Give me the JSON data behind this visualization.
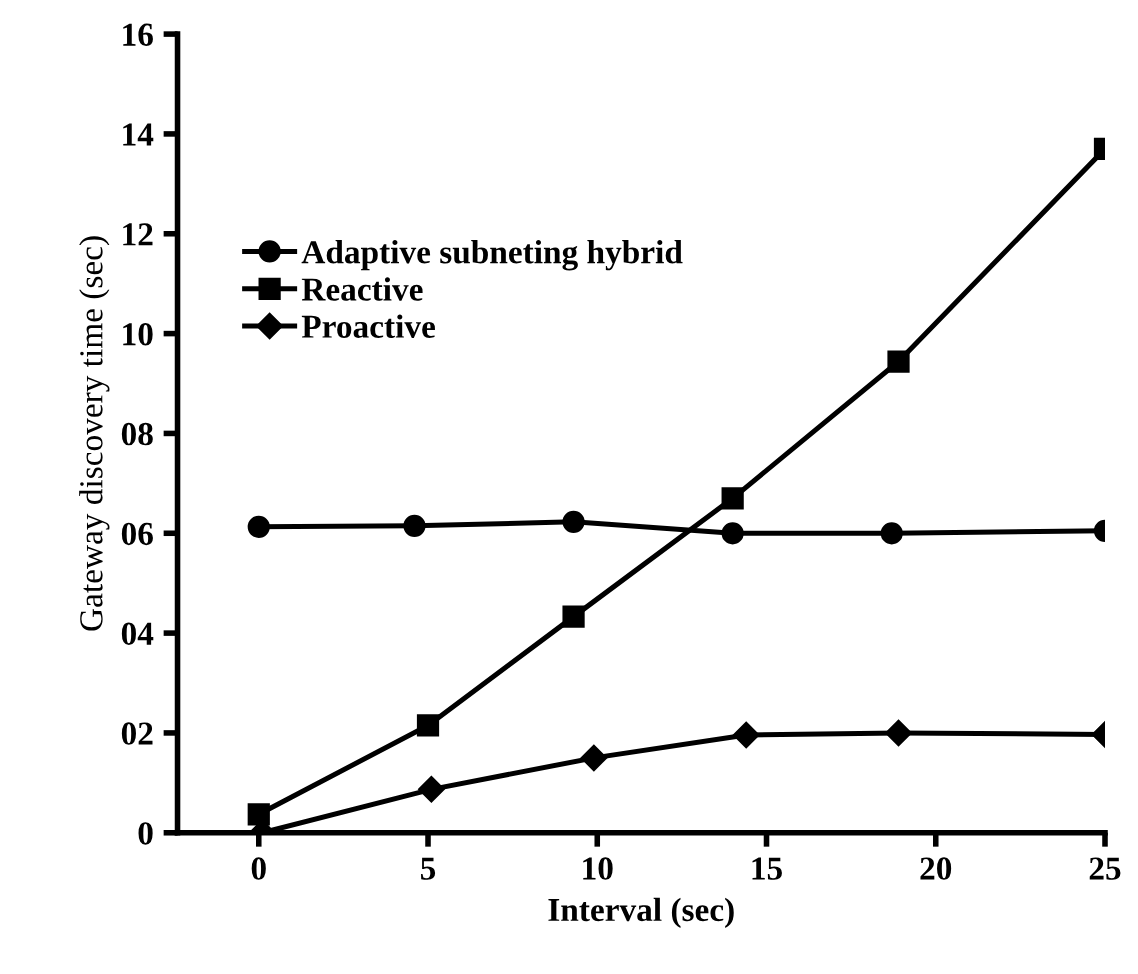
{
  "chart_data": {
    "type": "line",
    "xlabel": "Interval (sec)",
    "ylabel": "Gateway discovery time (sec)",
    "xlim": [
      -2.4,
      25
    ],
    "xticks": [
      0,
      5,
      10,
      15,
      20,
      25
    ],
    "ylim": [
      0,
      16
    ],
    "yticks": [
      0,
      {
        "value": 2,
        "label": "02"
      },
      {
        "value": 4,
        "label": "04"
      },
      {
        "value": 6,
        "label": "06"
      },
      {
        "value": 8,
        "label": "08"
      },
      10,
      12,
      14,
      16
    ],
    "legend": "top left",
    "grid": false,
    "line_style": "solid",
    "series": [
      {
        "name": "Adaptive subneting hybrid",
        "color": "#000000",
        "marker": "circle",
        "x": [
          0,
          4.6,
          9.3,
          14.0,
          18.7,
          25
        ],
        "values": [
          6.13,
          6.15,
          6.23,
          6.0,
          6.0,
          6.05
        ]
      },
      {
        "name": "Reactive",
        "color": "#000000",
        "marker": "square",
        "x": [
          0,
          5,
          9.3,
          14.0,
          18.9,
          25
        ],
        "values": [
          0.37,
          2.15,
          4.33,
          6.7,
          9.44,
          13.7
        ]
      },
      {
        "name": "Proactive",
        "color": "#000000",
        "marker": "diamond",
        "x": [
          0.1,
          5.1,
          9.9,
          14.4,
          18.9,
          25
        ],
        "values": [
          0,
          0.87,
          1.5,
          1.96,
          2.0,
          1.97
        ]
      }
    ]
  }
}
